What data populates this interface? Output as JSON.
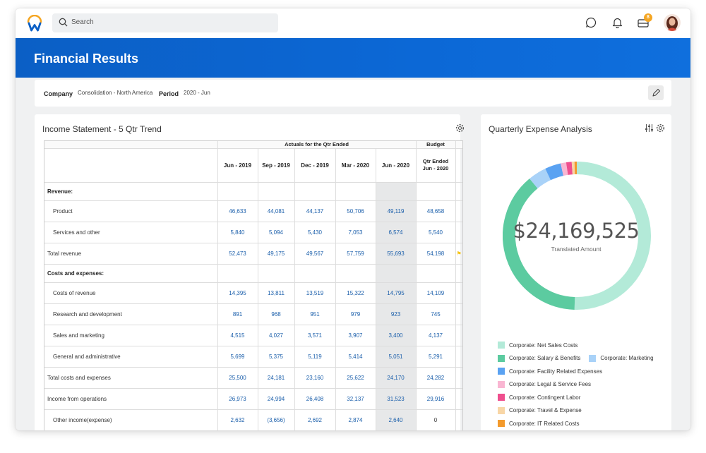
{
  "app": {
    "search_placeholder": "Search",
    "inbox_badge": "8",
    "page_title": "Financial Results"
  },
  "filters": {
    "company_label": "Company",
    "company_value": "Consolidation - North America",
    "period_label": "Period",
    "period_value": "2020 - Jun"
  },
  "income_statement": {
    "title": "Income Statement - 5 Qtr Trend",
    "group_header_actuals": "Actuals for the Qtr Ended",
    "group_header_budget": "Budget",
    "columns": [
      "Jun - 2019",
      "Sep - 2019",
      "Dec - 2019",
      "Mar - 2020",
      "Jun - 2020",
      "Qtr Ended Jun - 2020"
    ],
    "rows": [
      {
        "label": "Revenue:",
        "section": true,
        "values": [
          "",
          "",
          "",
          "",
          "",
          ""
        ]
      },
      {
        "label": "Product",
        "values": [
          "46,633",
          "44,081",
          "44,137",
          "50,706",
          "49,119",
          "48,658"
        ]
      },
      {
        "label": "Services and other",
        "values": [
          "5,840",
          "5,094",
          "5,430",
          "7,053",
          "6,574",
          "5,540"
        ]
      },
      {
        "label": "Total revenue",
        "total": true,
        "flag": true,
        "values": [
          "52,473",
          "49,175",
          "49,567",
          "57,759",
          "55,693",
          "54,198"
        ]
      },
      {
        "label": "Costs and expenses:",
        "section": true,
        "values": [
          "",
          "",
          "",
          "",
          "",
          ""
        ]
      },
      {
        "label": "Costs of revenue",
        "values": [
          "14,395",
          "13,811",
          "13,519",
          "15,322",
          "14,795",
          "14,109"
        ]
      },
      {
        "label": "Research and development",
        "values": [
          "891",
          "968",
          "951",
          "979",
          "923",
          "745"
        ]
      },
      {
        "label": "Sales and marketing",
        "values": [
          "4,515",
          "4,027",
          "3,571",
          "3,907",
          "3,400",
          "4,137"
        ]
      },
      {
        "label": "General and administrative",
        "values": [
          "5,699",
          "5,375",
          "5,119",
          "5,414",
          "5,051",
          "5,291"
        ]
      },
      {
        "label": "Total costs and expenses",
        "total": true,
        "values": [
          "25,500",
          "24,181",
          "23,160",
          "25,622",
          "24,170",
          "24,282"
        ]
      },
      {
        "label": "Income from operations",
        "total": true,
        "values": [
          "26,973",
          "24,994",
          "26,408",
          "32,137",
          "31,523",
          "29,916"
        ]
      },
      {
        "label": "Other income(expense)",
        "values": [
          "2,632",
          "(3,656)",
          "2,692",
          "2,874",
          "2,640",
          "0"
        ]
      }
    ]
  },
  "expense_analysis": {
    "title": "Quarterly Expense Analysis",
    "total_value": "$24,169,525",
    "total_caption": "Translated Amount",
    "legend": [
      {
        "label": "Corporate: Net Sales Costs",
        "color": "#b3ead8"
      },
      {
        "label": "Corporate: Salary & Benefits",
        "color": "#5ccba0"
      },
      {
        "label": "Corporate: Marketing",
        "color": "#a9d2f8"
      },
      {
        "label": "Corporate: Facility Related Expenses",
        "color": "#5aa2f2"
      },
      {
        "label": "Corporate: Legal & Service Fees",
        "color": "#f9b6d2"
      },
      {
        "label": "Corporate: Contingent Labor",
        "color": "#ef4f8e"
      },
      {
        "label": "Corporate: Travel & Expense",
        "color": "#f8d6a6"
      },
      {
        "label": "Corporate: IT Related Costs",
        "color": "#f39a2c"
      }
    ],
    "shares": [
      0.505,
      0.385,
      0.04,
      0.035,
      0.012,
      0.012,
      0.006,
      0.005
    ]
  }
}
